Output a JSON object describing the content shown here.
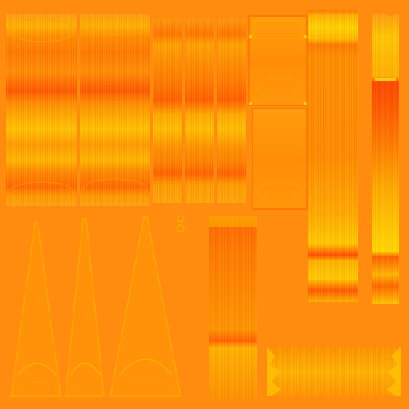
{
  "texture_atlas": {
    "colors": {
      "background": "#ff8c0f",
      "base_orange": "#ff9008",
      "deep_orange": "#ff6a00",
      "red_orange": "#ff4d00",
      "amber": "#ffa800",
      "yellow": "#ffc400",
      "bright_yellow": "#ffd81a",
      "pale_yellow": "#ffe040",
      "outline": "#ff7a00"
    },
    "panels": [
      {
        "name": "plank-panel",
        "style": "wide-planks"
      },
      {
        "name": "plank-panel",
        "style": "wide-planks"
      },
      {
        "name": "plank-panel",
        "style": "narrow-planks"
      },
      {
        "name": "plank-panel",
        "style": "narrow-planks"
      },
      {
        "name": "plank-panel",
        "style": "narrow-planks"
      },
      {
        "name": "framed-panel",
        "style": "frame"
      },
      {
        "name": "strip-panel",
        "style": "vertical-strip"
      },
      {
        "name": "strip-panel",
        "style": "gradient-strip"
      },
      {
        "name": "spike-panel",
        "style": "spike"
      },
      {
        "name": "column-panel",
        "style": "column"
      },
      {
        "name": "fringe-panel",
        "style": "fringe"
      }
    ]
  }
}
